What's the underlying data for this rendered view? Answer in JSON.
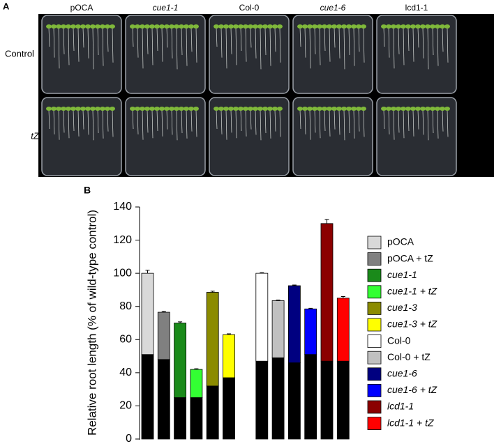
{
  "panel_a": {
    "label": "A",
    "columns": [
      "pOCA",
      "cue1-1",
      "Col-0",
      "cue1-6",
      "lcd1-1"
    ],
    "rows": [
      "Control",
      "tZ"
    ]
  },
  "chart_data": {
    "type": "stacked_bar",
    "panel_label": "B",
    "ylabel": "Relative root length (% of wild-type control)",
    "categories": [
      "pOCA",
      "pOCA + tZ",
      "cue1-1",
      "cue1-1 + tZ",
      "cue1-3",
      "cue1-3 + tZ",
      "Col-0",
      "Col-0 + tZ",
      "cue1-6",
      "cue1-6 + tZ",
      "lcd1-1",
      "lcd1-1 + tZ"
    ],
    "series": [
      {
        "color": "#000000",
        "values": [
          51,
          48,
          25,
          25,
          32,
          37,
          47,
          49,
          46,
          51,
          47,
          47
        ],
        "errors": [
          0.8,
          0.6,
          0.6,
          0.6,
          0.6,
          0.6,
          0.6,
          0.8,
          0.6,
          0.6,
          1.5,
          1.2
        ]
      },
      {
        "colors": [
          "#d9d9d9",
          "#808080",
          "#1a8a1a",
          "#33ff33",
          "#8b8b00",
          "#ffff00",
          "#ffffff",
          "#c0c0c0",
          "#000080",
          "#0000ff",
          "#8b0000",
          "#ff0000"
        ],
        "values": [
          49,
          28.5,
          45,
          17,
          56.5,
          26,
          53,
          34.5,
          46.5,
          27.5,
          83,
          38
        ],
        "errors": [
          1.8,
          0.5,
          0.7,
          0.4,
          0.7,
          0.5,
          0.4,
          0.4,
          0.4,
          0.4,
          2.5,
          1
        ]
      }
    ],
    "ylim": [
      0,
      140
    ],
    "yticks": [
      0,
      20,
      40,
      60,
      80,
      100,
      120,
      140
    ]
  }
}
